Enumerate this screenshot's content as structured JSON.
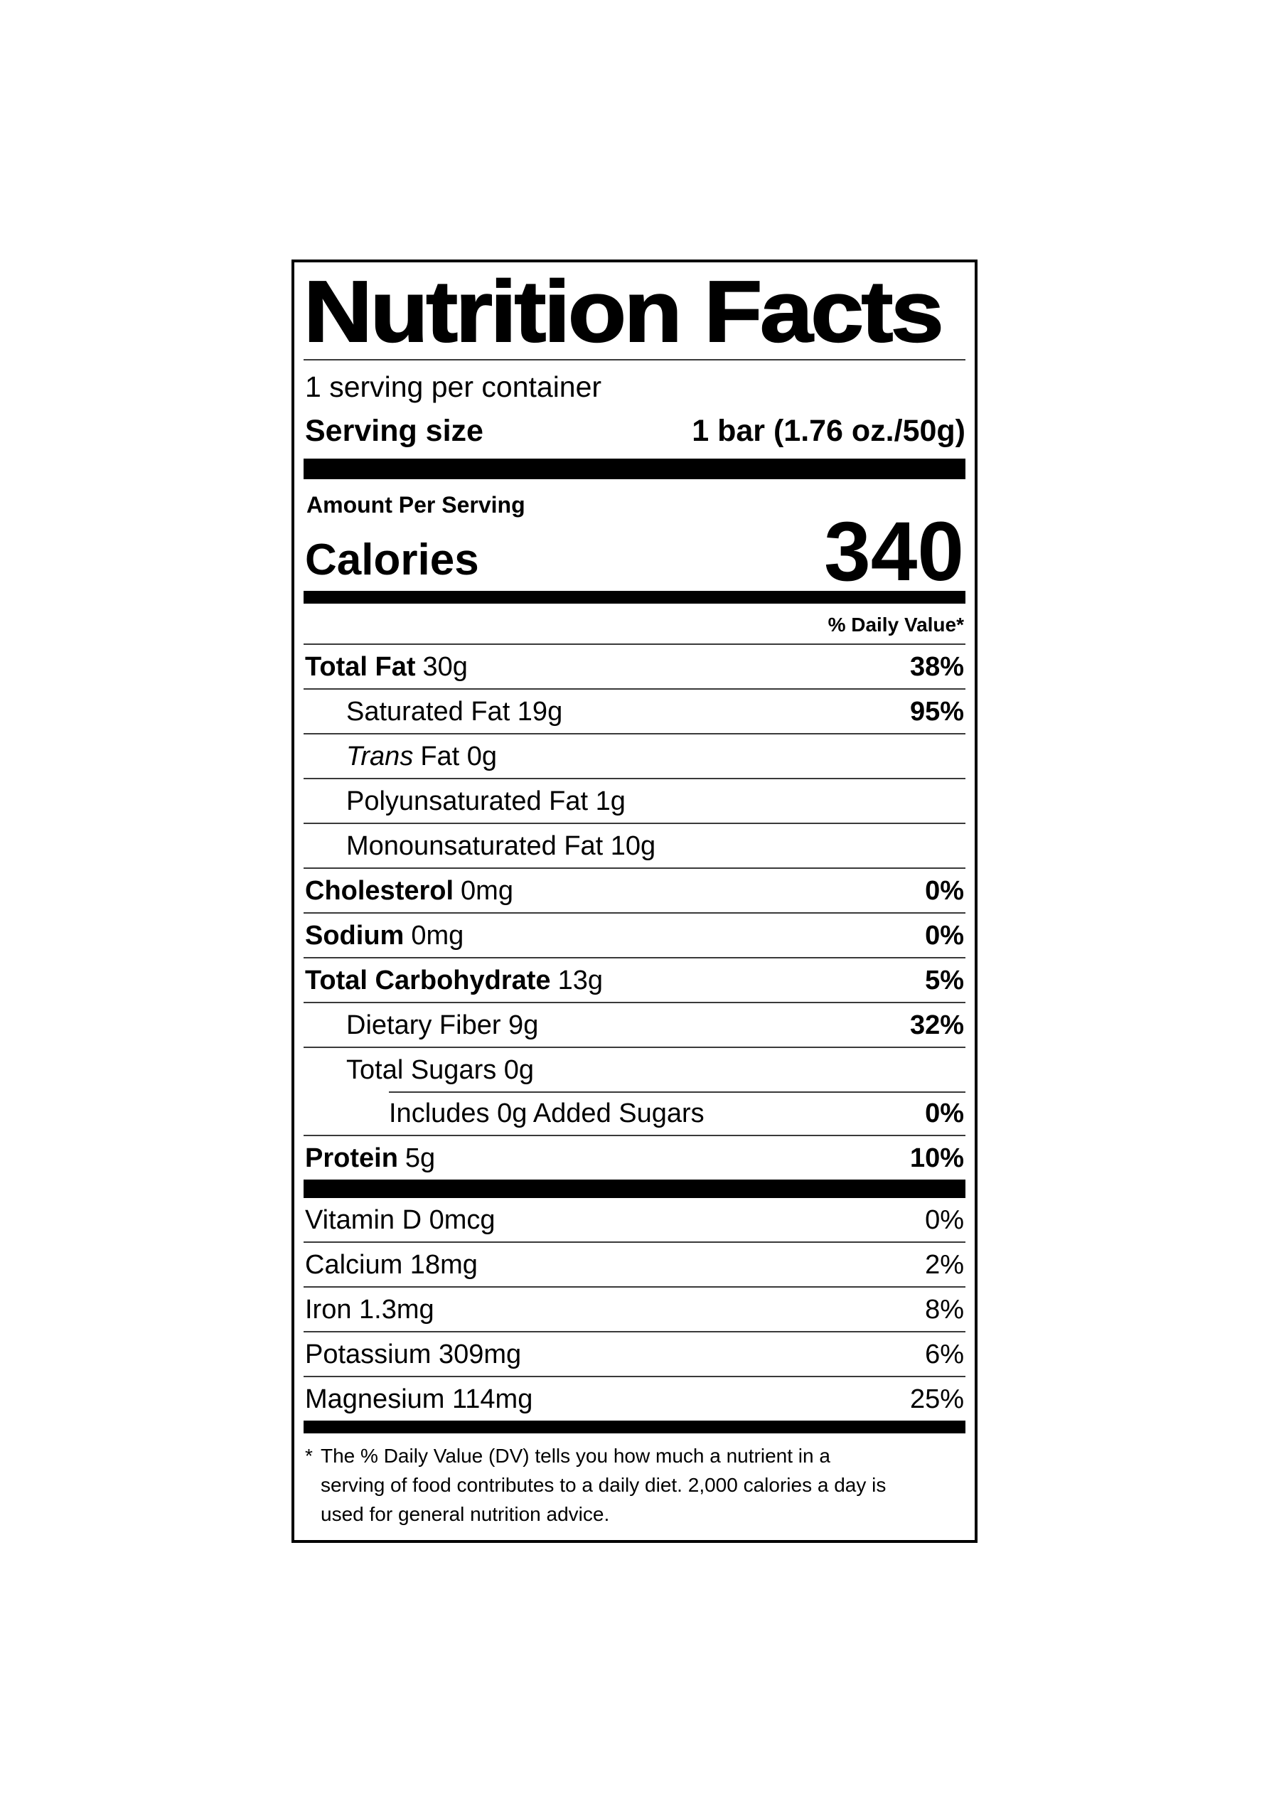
{
  "colors": {
    "text": "#000000",
    "background": "#ffffff",
    "separator": "#3a3a3a",
    "bar": "#000000"
  },
  "label": {
    "title": "Nutrition Facts",
    "servings_per_container": "1 serving per container",
    "serving_size": {
      "label": "Serving size",
      "value": "1 bar (1.76 oz./50g)"
    },
    "amount_per_serving": "Amount Per Serving",
    "calories": {
      "label": "Calories",
      "value": "340"
    },
    "daily_value_header": "% Daily Value*",
    "nutrients": [
      {
        "name": "Total Fat",
        "amount": "30g",
        "dv": "38%"
      },
      {
        "text": "Saturated Fat 19g",
        "dv": "95%"
      },
      {
        "italic": "Trans",
        "text": "Fat 0g"
      },
      {
        "text": "Polyunsaturated Fat 1g"
      },
      {
        "text": "Monounsaturated Fat 10g"
      },
      {
        "name": "Cholesterol",
        "amount": "0mg",
        "dv": "0%"
      },
      {
        "name": "Sodium",
        "amount": "0mg",
        "dv": "0%"
      },
      {
        "name": "Total Carbohydrate",
        "amount": "13g",
        "dv": "5%"
      },
      {
        "text": "Dietary Fiber 9g",
        "dv": "32%"
      },
      {
        "text": "Total Sugars 0g"
      },
      {
        "text": "Includes 0g Added Sugars",
        "dv": "0%"
      },
      {
        "name": "Protein",
        "amount": "5g",
        "dv": "10%"
      }
    ],
    "micronutrients": [
      {
        "name": "Vitamin D 0mcg",
        "dv": "0%"
      },
      {
        "name": "Calcium 18mg",
        "dv": "2%"
      },
      {
        "name": "Iron 1.3mg",
        "dv": "8%"
      },
      {
        "name": "Potassium 309mg",
        "dv": "6%"
      },
      {
        "name": "Magnesium 114mg",
        "dv": "25%"
      }
    ],
    "footnote_marker": "*",
    "footnote": "The % Daily Value (DV) tells you how much a nutrient in a serving of food contributes to a daily diet. 2,000 calories a day is used for general nutrition advice."
  }
}
